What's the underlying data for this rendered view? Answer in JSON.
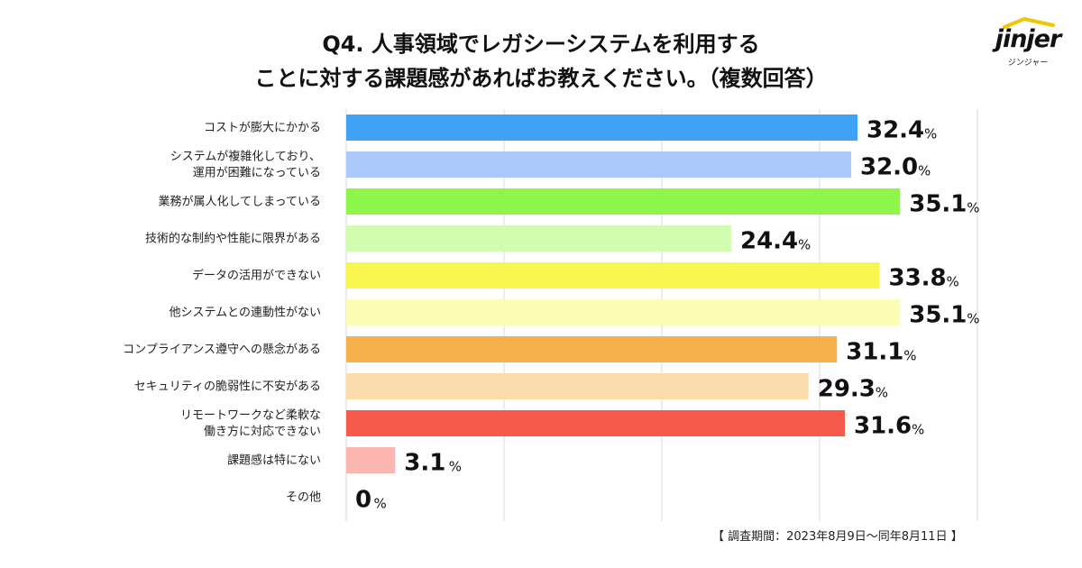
{
  "logo": {
    "word": "jinjer",
    "sub": "ジンジャー"
  },
  "title_lines": [
    "Q4. 人事領域でレガシーシステムを利用する",
    "ことに対する課題感があればお教えください。（複数回答）"
  ],
  "note": "【 調査期間：2023年8月9日〜同年8月11日 】",
  "chart_data": {
    "type": "bar",
    "orientation": "horizontal",
    "title": "Q4. 人事領域でレガシーシステムを利用することに対する課題感があればお教えください。（複数回答）",
    "unit": "%",
    "xlim": [
      0,
      40
    ],
    "grid": true,
    "categories": [
      [
        "コストが膨大にかかる"
      ],
      [
        "システムが複雑化しており、",
        "運用が困難になっている"
      ],
      [
        "業務が属人化してしまっている"
      ],
      [
        "技術的な制約や性能に限界がある"
      ],
      [
        "データの活用ができない"
      ],
      [
        "他システムとの連動性がない"
      ],
      [
        "コンプライアンス遵守への懸念がある"
      ],
      [
        "セキュリティの脆弱性に不安がある"
      ],
      [
        "リモートワークなど柔軟な",
        "働き方に対応できない"
      ],
      [
        "課題感は特にない"
      ],
      [
        "その他"
      ]
    ],
    "values": [
      32.4,
      32.0,
      35.1,
      24.4,
      33.8,
      35.1,
      31.1,
      29.3,
      31.6,
      3.1,
      0
    ],
    "value_labels": [
      "32.4",
      "32.0",
      "35.1",
      "24.4",
      "33.8",
      "35.1",
      "31.1",
      "29.3",
      "31.6",
      "3.1",
      "0"
    ],
    "colors": [
      "#3fa2f4",
      "#adc9fc",
      "#8cf64b",
      "#d2fdb1",
      "#f7f54e",
      "#fafdb3",
      "#f6b14c",
      "#fbdcad",
      "#f65a4c",
      "#fbb6b0",
      "#cccccc"
    ]
  }
}
